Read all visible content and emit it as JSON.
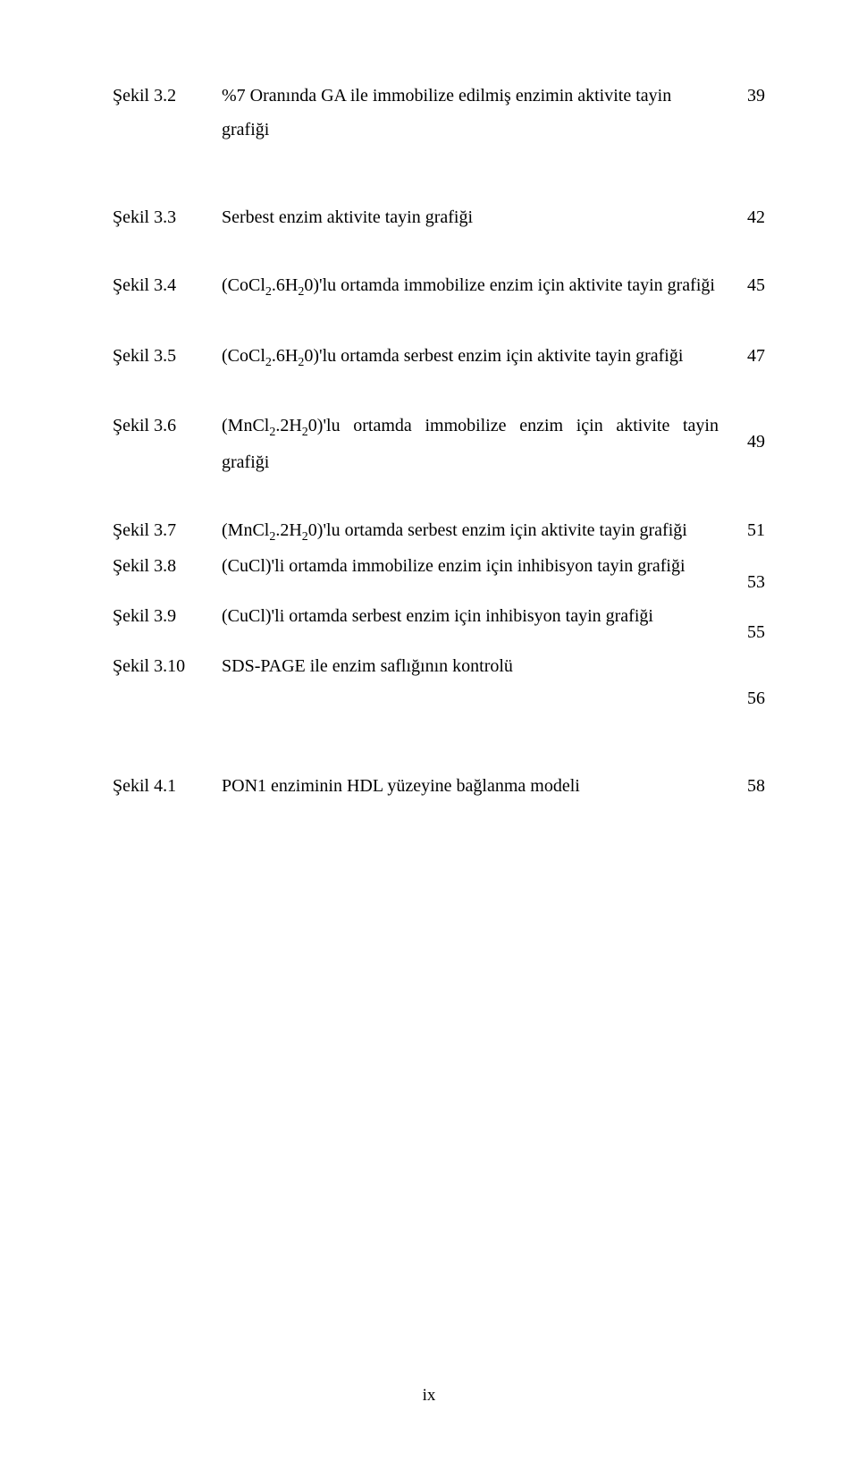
{
  "entries": [
    {
      "label": "Şekil 3.2",
      "desc_html": "%7 Oranında GA ile immobilize edilmiş enzimin aktivite tayin grafiği",
      "num": "39",
      "justify": false
    },
    {
      "label": "Şekil 3.3",
      "desc_html": "Serbest enzim aktivite tayin grafiği",
      "num": "42",
      "justify": false
    },
    {
      "label": "Şekil 3.4",
      "desc_html": "(CoCl<span class=\"sub\">2</span>.6H<span class=\"sub\">2</span>0)'lu ortamda immobilize enzim için aktivite tayin grafiği",
      "num": "45",
      "justify": true
    },
    {
      "label": "Şekil 3.5",
      "desc_html": "(CoCl<span class=\"sub\">2</span>.6H<span class=\"sub\">2</span>0)'lu ortamda serbest enzim için aktivite tayin grafiği",
      "num": "47",
      "justify": true
    },
    {
      "label": "Şekil 3.6",
      "desc_html": "(MnCl<span class=\"sub\">2</span>.2H<span class=\"sub\">2</span>0)'lu ortamda immobilize enzim için aktivite tayin grafiği",
      "num": "49",
      "justify": true,
      "num_offset": true
    },
    {
      "label": "Şekil 3.7",
      "desc_html": "(MnCl<span class=\"sub\">2</span>.2H<span class=\"sub\">2</span>0)'lu ortamda serbest enzim için aktivite tayin grafiği",
      "num": "51",
      "justify": true
    },
    {
      "label": "Şekil 3.8",
      "desc_html": "(CuCl)'li ortamda immobilize enzim için inhibisyon tayin grafiği",
      "num": "53",
      "justify": false
    },
    {
      "label": "Şekil 3.9",
      "desc_html": "(CuCl)'li ortamda serbest enzim için inhibisyon tayin grafiği",
      "num": "55",
      "justify": false
    },
    {
      "label": "Şekil 3.10",
      "desc_html": "SDS-PAGE ile enzim saflığının kontrolü",
      "num": "56",
      "justify": false,
      "num_offset": true
    },
    {
      "label": "Şekil 4.1",
      "desc_html": "PON1 enziminin HDL yüzeyine bağlanma modeli",
      "num": "58",
      "justify": false
    }
  ],
  "page_number": "ix"
}
